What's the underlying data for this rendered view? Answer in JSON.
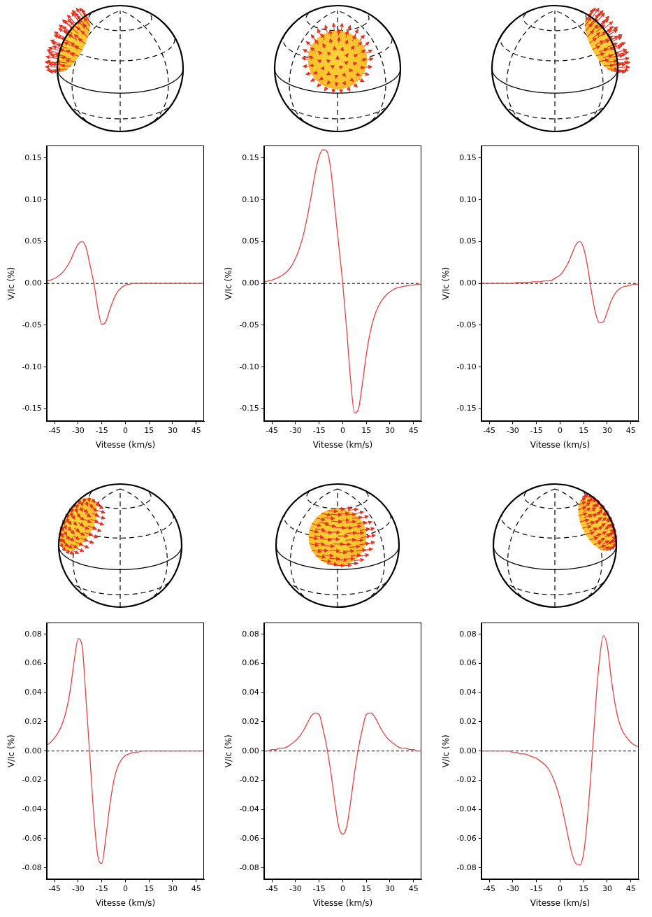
{
  "chart_data": [
    {
      "type": "line",
      "x_label": "Vitesse (km/s)",
      "y_label": "V/Ic (%)",
      "grid": false,
      "xlim": [
        -50,
        50
      ],
      "xticks": [
        -45,
        -30,
        -15,
        0,
        15,
        30,
        45
      ],
      "ylim": [
        -0.165,
        0.165
      ],
      "yticks": [
        -0.15,
        {
          "value": -0.1,
          "label": "-0.10"
        },
        -0.05,
        {
          "value": 0,
          "label": "0.00"
        },
        0.05,
        {
          "value": 0.1,
          "label": "0.10"
        },
        0.15
      ],
      "reference_line": {
        "y": 0,
        "line_style": "dashed",
        "color": "#000000"
      },
      "color": "#e8423c",
      "x": [
        -50,
        -47.5,
        -45,
        -42.5,
        -40,
        -37.5,
        -35,
        -32.5,
        -30,
        -27.5,
        -25,
        -22.5,
        -20,
        -17.5,
        -15,
        -12.5,
        -10,
        -7.5,
        -5,
        -2.5,
        0,
        2.5,
        5,
        7.5,
        10,
        12.5,
        15,
        17.5,
        20,
        22.5,
        25,
        27.5,
        30,
        32.5,
        35,
        37.5,
        40,
        42.5,
        45,
        47.5,
        50
      ],
      "values": [
        0.003,
        0.004,
        0.006,
        0.009,
        0.013,
        0.019,
        0.027,
        0.038,
        0.047,
        0.05,
        0.043,
        0.022,
        0.0,
        -0.03,
        -0.049,
        -0.046,
        -0.032,
        -0.019,
        -0.01,
        -0.005,
        -0.002,
        -0.001,
        0,
        0,
        0,
        0,
        0,
        0,
        0,
        0,
        0,
        0,
        0,
        0,
        0,
        0,
        0,
        0,
        0,
        0,
        0
      ]
    },
    {
      "type": "line",
      "x_label": "Vitesse (km/s)",
      "y_label": "V/Ic (%)",
      "grid": false,
      "xlim": [
        -50,
        50
      ],
      "xticks": [
        -45,
        -30,
        -15,
        0,
        15,
        30,
        45
      ],
      "ylim": [
        -0.165,
        0.165
      ],
      "yticks": [
        -0.15,
        {
          "value": -0.1,
          "label": "-0.10"
        },
        -0.05,
        {
          "value": 0,
          "label": "0.00"
        },
        0.05,
        {
          "value": 0.1,
          "label": "0.10"
        },
        0.15
      ],
      "reference_line": {
        "y": 0,
        "line_style": "dashed",
        "color": "#000000"
      },
      "color": "#e8423c",
      "x": [
        -50,
        -47.5,
        -45,
        -42.5,
        -40,
        -37.5,
        -35,
        -32.5,
        -30,
        -27.5,
        -25,
        -22.5,
        -20,
        -17.5,
        -15,
        -12.5,
        -10,
        -7.5,
        -5,
        -2.5,
        0,
        2.5,
        5,
        7.5,
        10,
        12.5,
        15,
        17.5,
        20,
        22.5,
        25,
        27.5,
        30,
        32.5,
        35,
        37.5,
        40,
        42.5,
        45,
        47.5,
        50
      ],
      "values": [
        0.002,
        0.003,
        0.004,
        0.006,
        0.008,
        0.011,
        0.015,
        0.021,
        0.03,
        0.042,
        0.058,
        0.08,
        0.105,
        0.132,
        0.152,
        0.16,
        0.158,
        0.135,
        0.09,
        0.045,
        0.0,
        -0.055,
        -0.115,
        -0.155,
        -0.15,
        -0.12,
        -0.085,
        -0.058,
        -0.04,
        -0.028,
        -0.02,
        -0.014,
        -0.01,
        -0.007,
        -0.005,
        -0.004,
        -0.003,
        -0.002,
        -0.002,
        -0.001,
        -0.001
      ]
    },
    {
      "type": "line",
      "x_label": "Vitesse (km/s)",
      "y_label": "V/Ic (%)",
      "grid": false,
      "xlim": [
        -50,
        50
      ],
      "xticks": [
        -45,
        -30,
        -15,
        0,
        15,
        30,
        45
      ],
      "ylim": [
        -0.165,
        0.165
      ],
      "yticks": [
        -0.15,
        {
          "value": -0.1,
          "label": "-0.10"
        },
        -0.05,
        {
          "value": 0,
          "label": "0.00"
        },
        0.05,
        {
          "value": 0.1,
          "label": "0.10"
        },
        0.15
      ],
      "reference_line": {
        "y": 0,
        "line_style": "dashed",
        "color": "#000000"
      },
      "color": "#e8423c",
      "x": [
        -50,
        -47.5,
        -45,
        -42.5,
        -40,
        -37.5,
        -35,
        -32.5,
        -30,
        -27.5,
        -25,
        -22.5,
        -20,
        -17.5,
        -15,
        -12.5,
        -10,
        -7.5,
        -5,
        -2.5,
        0,
        2.5,
        5,
        7.5,
        10,
        12.5,
        15,
        17.5,
        20,
        22.5,
        25,
        27.5,
        30,
        32.5,
        35,
        37.5,
        40,
        42.5,
        45,
        47.5,
        50
      ],
      "values": [
        0,
        0,
        0,
        0,
        0,
        0,
        0,
        0,
        0,
        0.001,
        0.001,
        0.001,
        0.001,
        0.002,
        0.002,
        0.002,
        0.003,
        0.003,
        0.004,
        0.007,
        0.01,
        0.016,
        0.024,
        0.035,
        0.046,
        0.05,
        0.042,
        0.02,
        -0.01,
        -0.035,
        -0.047,
        -0.046,
        -0.034,
        -0.021,
        -0.012,
        -0.007,
        -0.004,
        -0.003,
        -0.002,
        -0.001,
        -0.001
      ]
    },
    {
      "type": "line",
      "x_label": "Vitesse (km/s)",
      "y_label": "V/Ic (%)",
      "grid": false,
      "xlim": [
        -50,
        50
      ],
      "xticks": [
        -45,
        -30,
        -15,
        0,
        15,
        30,
        45
      ],
      "ylim": [
        -0.088,
        0.088
      ],
      "yticks": [
        -0.08,
        -0.06,
        -0.04,
        -0.02,
        {
          "value": 0,
          "label": "0.00"
        },
        0.02,
        0.04,
        0.06,
        0.08
      ],
      "reference_line": {
        "y": 0,
        "line_style": "dashed",
        "color": "#000000"
      },
      "color": "#e8423c",
      "x": [
        -50,
        -47.5,
        -45,
        -42.5,
        -40,
        -37.5,
        -35,
        -32.5,
        -30,
        -27.5,
        -25,
        -22.5,
        -20,
        -17.5,
        -15,
        -12.5,
        -10,
        -7.5,
        -5,
        -2.5,
        0,
        2.5,
        5,
        7.5,
        10,
        12.5,
        15,
        17.5,
        20,
        22.5,
        25,
        27.5,
        30,
        32.5,
        35,
        37.5,
        40,
        42.5,
        45,
        47.5,
        50
      ],
      "values": [
        0.004,
        0.006,
        0.009,
        0.013,
        0.019,
        0.028,
        0.042,
        0.062,
        0.077,
        0.072,
        0.035,
        -0.005,
        -0.045,
        -0.072,
        -0.077,
        -0.06,
        -0.038,
        -0.021,
        -0.011,
        -0.006,
        -0.003,
        -0.002,
        -0.001,
        -0.001,
        0,
        0,
        0,
        0,
        0,
        0,
        0,
        0,
        0,
        0,
        0,
        0,
        0,
        0,
        0,
        0,
        0
      ]
    },
    {
      "type": "line",
      "x_label": "Vitesse (km/s)",
      "y_label": "V/Ic (%)",
      "grid": false,
      "xlim": [
        -50,
        50
      ],
      "xticks": [
        -45,
        -30,
        -15,
        0,
        15,
        30,
        45
      ],
      "ylim": [
        -0.088,
        0.088
      ],
      "yticks": [
        -0.08,
        -0.06,
        -0.04,
        -0.02,
        {
          "value": 0,
          "label": "0.00"
        },
        0.02,
        0.04,
        0.06,
        0.08
      ],
      "reference_line": {
        "y": 0,
        "line_style": "dashed",
        "color": "#000000"
      },
      "color": "#e8423c",
      "x": [
        -50,
        -47.5,
        -45,
        -42.5,
        -40,
        -37.5,
        -35,
        -32.5,
        -30,
        -27.5,
        -25,
        -22.5,
        -20,
        -17.5,
        -15,
        -12.5,
        -10,
        -7.5,
        -5,
        -2.5,
        0,
        2.5,
        5,
        7.5,
        10,
        12.5,
        15,
        17.5,
        20,
        22.5,
        25,
        27.5,
        30,
        32.5,
        35,
        37.5,
        40,
        42.5,
        45,
        47.5,
        50
      ],
      "values": [
        0,
        0,
        0.001,
        0.001,
        0.002,
        0.002,
        0.003,
        0.005,
        0.007,
        0.01,
        0.014,
        0.019,
        0.024,
        0.026,
        0.025,
        0.015,
        0.002,
        -0.015,
        -0.035,
        -0.052,
        -0.057,
        -0.052,
        -0.035,
        -0.015,
        0.002,
        0.015,
        0.025,
        0.026,
        0.024,
        0.019,
        0.014,
        0.01,
        0.007,
        0.005,
        0.003,
        0.002,
        0.002,
        0.001,
        0.001,
        0,
        0
      ]
    },
    {
      "type": "line",
      "x_label": "Vitesse (km/s)",
      "y_label": "V/Ic (%)",
      "grid": false,
      "xlim": [
        -50,
        50
      ],
      "xticks": [
        -45,
        -30,
        -15,
        0,
        15,
        30,
        45
      ],
      "ylim": [
        -0.088,
        0.088
      ],
      "yticks": [
        -0.08,
        -0.06,
        -0.04,
        -0.02,
        {
          "value": 0,
          "label": "0.00"
        },
        0.02,
        0.04,
        0.06,
        0.08
      ],
      "reference_line": {
        "y": 0,
        "line_style": "dashed",
        "color": "#000000"
      },
      "color": "#e8423c",
      "x": [
        -50,
        -47.5,
        -45,
        -42.5,
        -40,
        -37.5,
        -35,
        -32.5,
        -30,
        -27.5,
        -25,
        -22.5,
        -20,
        -17.5,
        -15,
        -12.5,
        -10,
        -7.5,
        -5,
        -2.5,
        0,
        2.5,
        5,
        7.5,
        10,
        12.5,
        15,
        17.5,
        20,
        22.5,
        25,
        27.5,
        30,
        32.5,
        35,
        37.5,
        40,
        42.5,
        45,
        47.5,
        50
      ],
      "values": [
        0,
        0,
        0,
        0,
        0,
        0,
        0,
        0,
        -0.001,
        -0.001,
        -0.002,
        -0.002,
        -0.003,
        -0.004,
        -0.005,
        -0.007,
        -0.009,
        -0.012,
        -0.017,
        -0.024,
        -0.033,
        -0.045,
        -0.058,
        -0.07,
        -0.077,
        -0.078,
        -0.07,
        -0.045,
        -0.01,
        0.03,
        0.062,
        0.079,
        0.072,
        0.05,
        0.032,
        0.02,
        0.013,
        0.009,
        0.006,
        0.004,
        0.003
      ]
    }
  ]
}
